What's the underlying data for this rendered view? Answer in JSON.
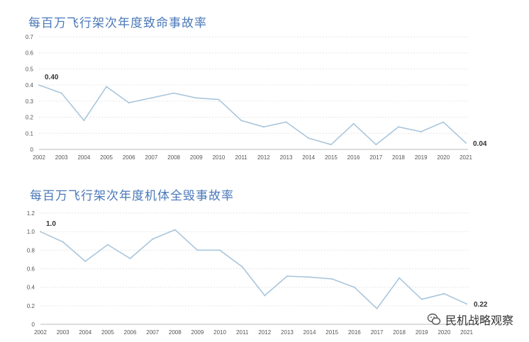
{
  "chart_data": [
    {
      "type": "line",
      "title": "每百万飞行架次年度致命事故率",
      "xlabel": "",
      "ylabel": "",
      "categories": [
        "2002",
        "2003",
        "2004",
        "2005",
        "2006",
        "2007",
        "2008",
        "2009",
        "2010",
        "2011",
        "2012",
        "2013",
        "2014",
        "2015",
        "2016",
        "2017",
        "2018",
        "2019",
        "2020",
        "2021"
      ],
      "values": [
        0.4,
        0.35,
        0.18,
        0.39,
        0.29,
        0.32,
        0.35,
        0.32,
        0.31,
        0.18,
        0.14,
        0.17,
        0.07,
        0.03,
        0.16,
        0.03,
        0.14,
        0.11,
        0.17,
        0.04
      ],
      "yticks": [
        "0",
        "0.1",
        "0.2",
        "0.3",
        "0.4",
        "0.5",
        "0.6",
        "0.7"
      ],
      "ylim": [
        0,
        0.7
      ],
      "grid": true,
      "line_color": "#a9c6dc",
      "annotations": [
        {
          "index": 0,
          "text": "0.40"
        },
        {
          "index": 19,
          "text": "0.04"
        }
      ]
    },
    {
      "type": "line",
      "title": "每百万飞行架次年度机体全毁事故率",
      "xlabel": "",
      "ylabel": "",
      "categories": [
        "2002",
        "2003",
        "2004",
        "2005",
        "2006",
        "2007",
        "2008",
        "2009",
        "2010",
        "2011",
        "2012",
        "2013",
        "2014",
        "2015",
        "2016",
        "2017",
        "2018",
        "2019",
        "2020",
        "2021"
      ],
      "values": [
        1.0,
        0.89,
        0.68,
        0.86,
        0.71,
        0.92,
        1.02,
        0.8,
        0.8,
        0.62,
        0.31,
        0.52,
        0.51,
        0.49,
        0.4,
        0.17,
        0.5,
        0.27,
        0.33,
        0.22
      ],
      "yticks": [
        "0",
        "0.2",
        "0.4",
        "0.6",
        "0.8",
        "1.0",
        "1.2"
      ],
      "ylim": [
        0,
        1.2
      ],
      "grid": true,
      "line_color": "#a9c6dc",
      "annotations": [
        {
          "index": 0,
          "text": "1.0"
        },
        {
          "index": 19,
          "text": "0.22"
        }
      ]
    }
  ],
  "watermark": {
    "text": "民机战略观察",
    "icon": "wechat-icon"
  }
}
